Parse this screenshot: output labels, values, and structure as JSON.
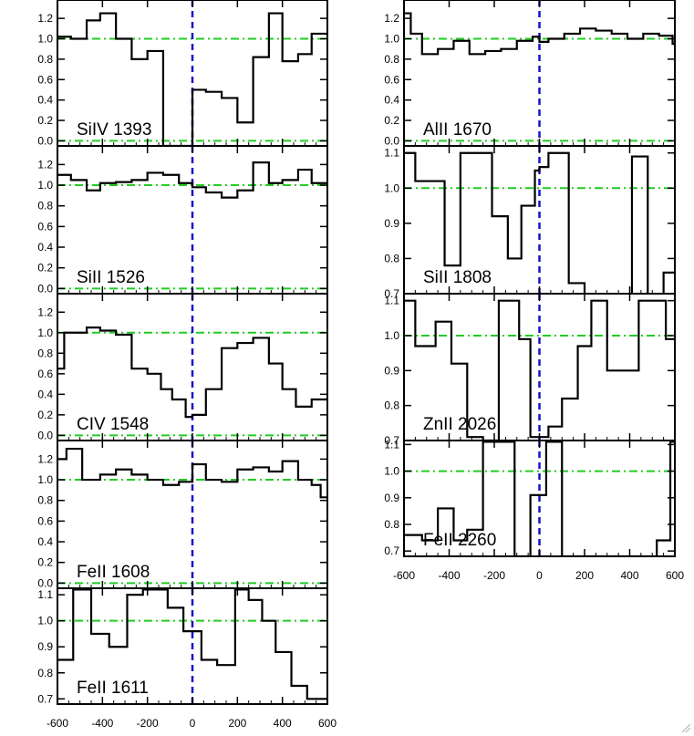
{
  "colors": {
    "spectrum": "#000000",
    "continuum": "#22cc22",
    "zero_velocity": "#1414c8",
    "frame": "#000000"
  },
  "chart_data": [
    {
      "type": "line",
      "step": true,
      "label": "SiIV 1393",
      "xlim": [
        -600,
        600
      ],
      "ylim": [
        -0.05,
        1.38
      ],
      "yticks": [
        0.0,
        0.2,
        0.4,
        0.6,
        0.8,
        1.0,
        1.2
      ],
      "ytick_labels": [
        "0.0",
        "0.2",
        "0.4",
        "0.6",
        "0.8",
        "1.0",
        "1.2"
      ],
      "continuum": [
        1.0,
        0.0
      ],
      "zero_line": 0,
      "x": [
        -600,
        -540,
        -470,
        -410,
        -340,
        -270,
        -200,
        -130,
        -60,
        0,
        60,
        130,
        200,
        270,
        340,
        400,
        470,
        530,
        600
      ],
      "y": [
        1.02,
        1.0,
        1.18,
        1.25,
        1.0,
        0.8,
        0.88,
        -0.05,
        -0.05,
        0.5,
        0.48,
        0.42,
        0.18,
        0.82,
        1.25,
        0.78,
        0.85,
        1.05,
        1.0
      ]
    },
    {
      "type": "line",
      "step": true,
      "label": "SiII 1526",
      "xlim": [
        -600,
        600
      ],
      "ylim": [
        -0.05,
        1.38
      ],
      "yticks": [
        0.0,
        0.2,
        0.4,
        0.6,
        0.8,
        1.0,
        1.2
      ],
      "ytick_labels": [
        "0.0",
        "0.2",
        "0.4",
        "0.6",
        "0.8",
        "1.0",
        "1.2"
      ],
      "continuum": [
        1.0,
        0.0
      ],
      "zero_line": 0,
      "x": [
        -600,
        -540,
        -470,
        -410,
        -340,
        -270,
        -200,
        -130,
        -60,
        0,
        60,
        130,
        200,
        270,
        340,
        400,
        470,
        530,
        600
      ],
      "y": [
        1.1,
        1.05,
        0.95,
        1.02,
        1.03,
        1.05,
        1.12,
        1.1,
        1.02,
        0.98,
        0.93,
        0.88,
        0.95,
        1.22,
        1.02,
        1.05,
        1.15,
        1.02,
        0.98
      ]
    },
    {
      "type": "line",
      "step": true,
      "label": "CIV 1548",
      "xlim": [
        -600,
        600
      ],
      "ylim": [
        -0.05,
        1.38
      ],
      "yticks": [
        0.0,
        0.2,
        0.4,
        0.6,
        0.8,
        1.0,
        1.2
      ],
      "ytick_labels": [
        "0.0",
        "0.2",
        "0.4",
        "0.6",
        "0.8",
        "1.0",
        "1.2"
      ],
      "continuum": [
        1.0,
        0.0
      ],
      "zero_line": 0,
      "x": [
        -600,
        -570,
        -470,
        -410,
        -340,
        -270,
        -200,
        -140,
        -90,
        -30,
        0,
        60,
        130,
        200,
        270,
        340,
        400,
        460,
        530,
        600
      ],
      "y": [
        0.65,
        1.0,
        1.05,
        1.02,
        0.98,
        0.65,
        0.6,
        0.45,
        0.35,
        0.18,
        0.2,
        0.45,
        0.85,
        0.9,
        0.95,
        0.7,
        0.45,
        0.28,
        0.35,
        0.38
      ]
    },
    {
      "type": "line",
      "step": true,
      "label": "FeII 1608",
      "xlim": [
        -600,
        600
      ],
      "ylim": [
        -0.05,
        1.38
      ],
      "yticks": [
        0.0,
        0.2,
        0.4,
        0.6,
        0.8,
        1.0,
        1.2
      ],
      "ytick_labels": [
        "0.0",
        "0.2",
        "0.4",
        "0.6",
        "0.8",
        "1.0",
        "1.2"
      ],
      "continuum": [
        1.0,
        0.0
      ],
      "zero_line": 0,
      "x": [
        -600,
        -560,
        -490,
        -410,
        -340,
        -270,
        -200,
        -130,
        -60,
        0,
        60,
        130,
        200,
        270,
        340,
        400,
        470,
        530,
        570,
        600
      ],
      "y": [
        1.2,
        1.3,
        1.0,
        1.05,
        1.1,
        1.05,
        1.0,
        0.95,
        0.98,
        1.15,
        1.0,
        0.98,
        1.1,
        1.12,
        1.08,
        1.18,
        1.0,
        0.95,
        0.83,
        0.83
      ]
    },
    {
      "type": "line",
      "step": true,
      "label": "FeII 1611",
      "xlim": [
        -600,
        600
      ],
      "ylim": [
        0.68,
        1.125
      ],
      "yticks": [
        0.7,
        0.8,
        0.9,
        1.0,
        1.1
      ],
      "ytick_labels": [
        "0.7",
        "0.8",
        "0.9",
        "1.0",
        "1.1"
      ],
      "continuum": [
        1.0
      ],
      "zero_line": 0,
      "x": [
        -600,
        -530,
        -450,
        -370,
        -290,
        -220,
        -110,
        -40,
        40,
        110,
        190,
        250,
        310,
        370,
        440,
        510,
        570,
        600
      ],
      "y": [
        0.85,
        1.12,
        0.95,
        0.9,
        1.1,
        1.12,
        1.05,
        0.96,
        0.85,
        0.83,
        1.12,
        1.08,
        1.0,
        0.88,
        0.75,
        0.7,
        0.7,
        0.7
      ]
    },
    {
      "type": "line",
      "step": true,
      "label": "AlII 1670",
      "xlim": [
        -600,
        600
      ],
      "ylim": [
        -0.05,
        1.38
      ],
      "yticks": [
        0.0,
        0.2,
        0.4,
        0.6,
        0.8,
        1.0,
        1.2
      ],
      "ytick_labels": [
        "0.0",
        "0.2",
        "0.4",
        "0.6",
        "0.8",
        "1.0",
        "1.2"
      ],
      "continuum": [
        1.0,
        0.0
      ],
      "zero_line": 0,
      "x": [
        -600,
        -570,
        -520,
        -450,
        -380,
        -310,
        -240,
        -170,
        -100,
        -30,
        0,
        40,
        110,
        180,
        250,
        320,
        390,
        460,
        530,
        590,
        600
      ],
      "y": [
        1.25,
        1.05,
        0.85,
        0.9,
        0.98,
        0.85,
        0.88,
        0.9,
        0.98,
        1.02,
        0.97,
        1.0,
        1.05,
        1.1,
        1.08,
        1.05,
        1.0,
        1.05,
        1.03,
        0.95,
        0.97
      ]
    },
    {
      "type": "line",
      "step": true,
      "label": "SiII 1808",
      "xlim": [
        -600,
        600
      ],
      "ylim": [
        0.7,
        1.12
      ],
      "yticks": [
        0.7,
        0.8,
        0.9,
        1.0,
        1.1
      ],
      "ytick_labels": [
        "0.7",
        "0.8",
        "0.9",
        "1.0",
        "1.1"
      ],
      "continuum": [
        1.0
      ],
      "zero_line": 0,
      "x": [
        -600,
        -550,
        -420,
        -350,
        -210,
        -140,
        -80,
        -20,
        0,
        40,
        130,
        200,
        270,
        340,
        410,
        480,
        550,
        600
      ],
      "y": [
        1.1,
        1.02,
        0.78,
        1.1,
        0.92,
        0.8,
        0.95,
        1.05,
        1.06,
        1.1,
        0.73,
        0.69,
        0.69,
        0.69,
        1.09,
        0.69,
        0.76,
        0.76
      ]
    },
    {
      "type": "line",
      "step": true,
      "label": "ZnII 2026",
      "xlim": [
        -600,
        600
      ],
      "ylim": [
        0.7,
        1.12
      ],
      "yticks": [
        0.7,
        0.8,
        0.9,
        1.0,
        1.1
      ],
      "ytick_labels": [
        "0.7",
        "0.8",
        "0.9",
        "1.0",
        "1.1"
      ],
      "continuum": [
        1.0
      ],
      "zero_line": 0,
      "x": [
        -600,
        -550,
        -460,
        -390,
        -320,
        -250,
        -180,
        -90,
        -40,
        40,
        100,
        170,
        230,
        300,
        380,
        440,
        510,
        560,
        600
      ],
      "y": [
        1.1,
        0.97,
        1.04,
        0.92,
        0.71,
        0.7,
        1.1,
        0.99,
        0.71,
        0.74,
        0.82,
        0.97,
        1.1,
        0.9,
        0.9,
        1.1,
        1.1,
        0.99,
        0.99
      ]
    },
    {
      "type": "line",
      "step": true,
      "label": "FeII 2260",
      "xlim": [
        -600,
        600
      ],
      "ylim": [
        0.68,
        1.115
      ],
      "yticks": [
        0.7,
        0.8,
        0.9,
        1.0,
        1.1
      ],
      "ytick_labels": [
        "0.7",
        "0.8",
        "0.9",
        "1.0",
        "1.1"
      ],
      "continuum": [
        1.0
      ],
      "zero_line": 0,
      "x": [
        -600,
        -520,
        -450,
        -380,
        -320,
        -250,
        -200,
        -110,
        -40,
        30,
        100,
        170,
        240,
        310,
        380,
        450,
        520,
        580,
        600
      ],
      "y": [
        0.76,
        0.74,
        0.86,
        0.74,
        0.78,
        1.11,
        1.11,
        0.68,
        0.91,
        1.11,
        0.68,
        0.68,
        0.68,
        0.68,
        0.68,
        0.68,
        0.74,
        1.11,
        1.11
      ]
    }
  ],
  "x_axis": {
    "ticks": [
      -600,
      -400,
      -200,
      0,
      200,
      400,
      600
    ],
    "tick_labels": [
      "-600",
      "-400",
      "-200",
      "0",
      "200",
      "400",
      "600"
    ]
  }
}
